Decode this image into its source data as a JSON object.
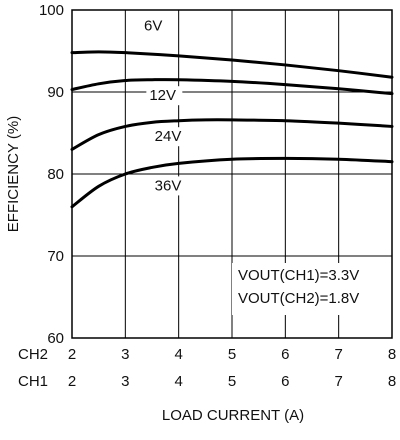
{
  "chart_data": {
    "type": "line",
    "title": "",
    "xlabel": "LOAD CURRENT (A)",
    "ylabel": "EFFICIENCY (%)",
    "xlim": [
      2,
      8
    ],
    "ylim": [
      60,
      100
    ],
    "x_ticks": [
      2,
      3,
      4,
      5,
      6,
      7,
      8
    ],
    "y_ticks": [
      60,
      70,
      80,
      90,
      100
    ],
    "x_axis_rows": [
      {
        "label": "CH2",
        "ticks": [
          "2",
          "3",
          "4",
          "5",
          "6",
          "7",
          "8"
        ]
      },
      {
        "label": "CH1",
        "ticks": [
          "2",
          "3",
          "4",
          "5",
          "6",
          "7",
          "8"
        ]
      }
    ],
    "grid": true,
    "series": [
      {
        "name": "6V",
        "x": [
          2,
          2.5,
          3,
          4,
          5,
          6,
          7,
          8
        ],
        "y": [
          94.8,
          94.9,
          94.8,
          94.4,
          93.9,
          93.3,
          92.6,
          91.8
        ]
      },
      {
        "name": "12V",
        "x": [
          2,
          2.5,
          3,
          3.5,
          4,
          5,
          6,
          7,
          8
        ],
        "y": [
          90.3,
          91.0,
          91.4,
          91.5,
          91.5,
          91.3,
          90.9,
          90.4,
          89.8
        ]
      },
      {
        "name": "24V",
        "x": [
          2,
          2.5,
          3,
          3.5,
          4,
          4.5,
          5,
          6,
          7,
          8
        ],
        "y": [
          83.0,
          84.8,
          85.8,
          86.3,
          86.5,
          86.6,
          86.6,
          86.5,
          86.2,
          85.8
        ]
      },
      {
        "name": "36V",
        "x": [
          2,
          2.5,
          3,
          3.5,
          4,
          5,
          6,
          7,
          8
        ],
        "y": [
          76.0,
          78.5,
          80.0,
          80.8,
          81.3,
          81.8,
          81.9,
          81.8,
          81.5
        ]
      }
    ],
    "series_label_anchors": [
      {
        "name": "6V",
        "x": 3.35,
        "y": 97.5
      },
      {
        "name": "12V",
        "x": 3.45,
        "y": 89.0
      },
      {
        "name": "24V",
        "x": 3.55,
        "y": 84.0
      },
      {
        "name": "36V",
        "x": 3.55,
        "y": 78.0
      }
    ],
    "annotations": [
      "VOUT(CH1)=3.3V",
      "VOUT(CH2)=1.8V"
    ]
  }
}
